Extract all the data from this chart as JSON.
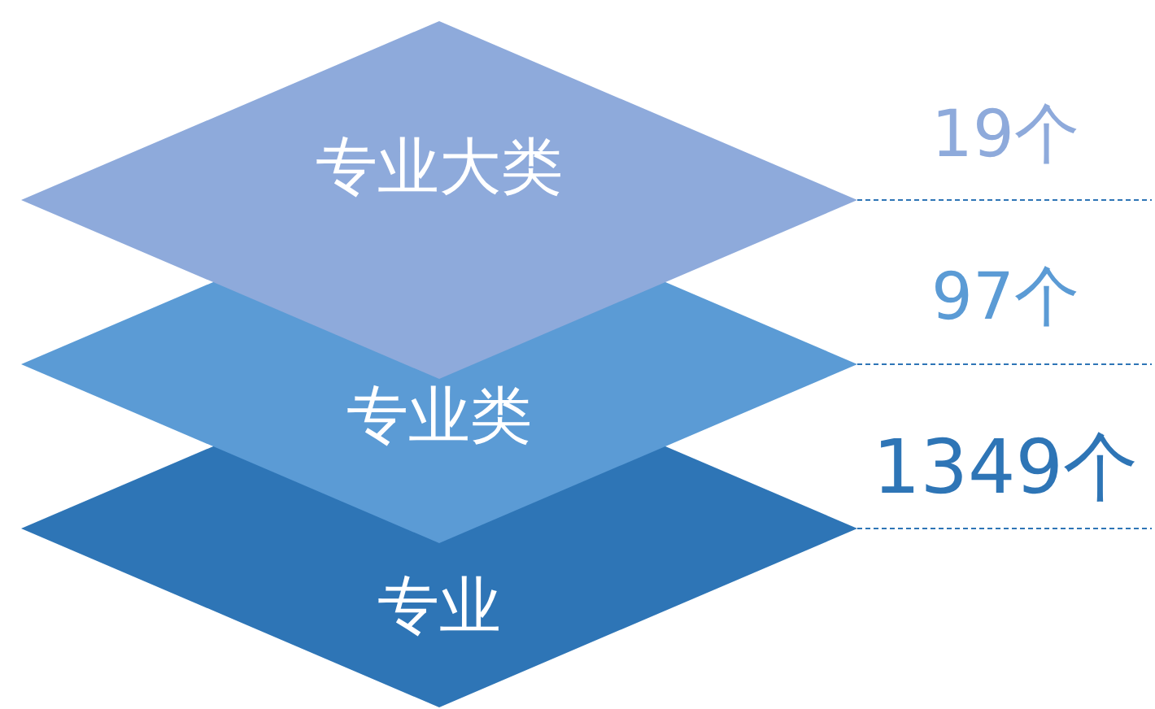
{
  "chart_data": {
    "type": "other",
    "categories": [
      "专业大类",
      "专业类",
      "专业"
    ],
    "values": [
      19,
      97,
      1349
    ],
    "value_labels": [
      "19个",
      "97个",
      "1349个"
    ],
    "colors": [
      "#8eaadb",
      "#5b9bd5",
      "#2e75b6"
    ]
  }
}
